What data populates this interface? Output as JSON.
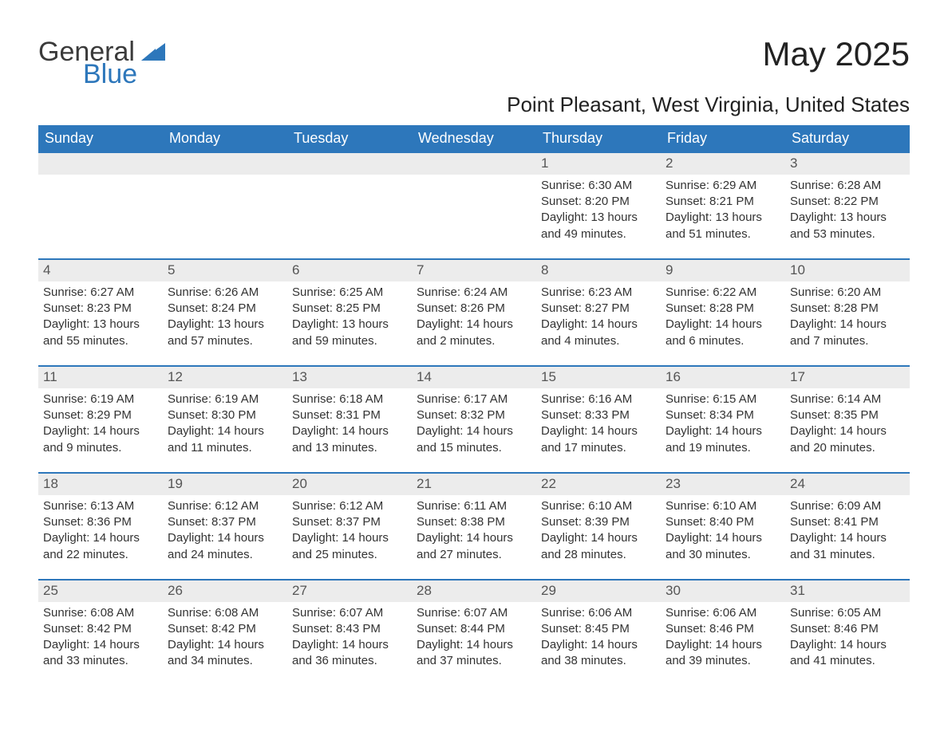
{
  "logo": {
    "word1": "General",
    "word2": "Blue",
    "brand_color": "#2D77BB",
    "text_color": "#3a3a3a"
  },
  "title": "May 2025",
  "location": "Point Pleasant, West Virginia, United States",
  "colors": {
    "header_bg": "#2D77BB",
    "header_text": "#ffffff",
    "daynum_bg": "#ECECEC",
    "body_text": "#333333",
    "row_border": "#2D77BB",
    "page_bg": "#ffffff"
  },
  "typography": {
    "title_fontsize": 42,
    "location_fontsize": 26,
    "header_fontsize": 18,
    "cell_fontsize": 15,
    "daynum_fontsize": 17,
    "logo_fontsize": 34
  },
  "weekdays": [
    "Sunday",
    "Monday",
    "Tuesday",
    "Wednesday",
    "Thursday",
    "Friday",
    "Saturday"
  ],
  "weeks": [
    [
      null,
      null,
      null,
      null,
      {
        "day": "1",
        "sunrise": "6:30 AM",
        "sunset": "8:20 PM",
        "daylight": "13 hours and 49 minutes."
      },
      {
        "day": "2",
        "sunrise": "6:29 AM",
        "sunset": "8:21 PM",
        "daylight": "13 hours and 51 minutes."
      },
      {
        "day": "3",
        "sunrise": "6:28 AM",
        "sunset": "8:22 PM",
        "daylight": "13 hours and 53 minutes."
      }
    ],
    [
      {
        "day": "4",
        "sunrise": "6:27 AM",
        "sunset": "8:23 PM",
        "daylight": "13 hours and 55 minutes."
      },
      {
        "day": "5",
        "sunrise": "6:26 AM",
        "sunset": "8:24 PM",
        "daylight": "13 hours and 57 minutes."
      },
      {
        "day": "6",
        "sunrise": "6:25 AM",
        "sunset": "8:25 PM",
        "daylight": "13 hours and 59 minutes."
      },
      {
        "day": "7",
        "sunrise": "6:24 AM",
        "sunset": "8:26 PM",
        "daylight": "14 hours and 2 minutes."
      },
      {
        "day": "8",
        "sunrise": "6:23 AM",
        "sunset": "8:27 PM",
        "daylight": "14 hours and 4 minutes."
      },
      {
        "day": "9",
        "sunrise": "6:22 AM",
        "sunset": "8:28 PM",
        "daylight": "14 hours and 6 minutes."
      },
      {
        "day": "10",
        "sunrise": "6:20 AM",
        "sunset": "8:28 PM",
        "daylight": "14 hours and 7 minutes."
      }
    ],
    [
      {
        "day": "11",
        "sunrise": "6:19 AM",
        "sunset": "8:29 PM",
        "daylight": "14 hours and 9 minutes."
      },
      {
        "day": "12",
        "sunrise": "6:19 AM",
        "sunset": "8:30 PM",
        "daylight": "14 hours and 11 minutes."
      },
      {
        "day": "13",
        "sunrise": "6:18 AM",
        "sunset": "8:31 PM",
        "daylight": "14 hours and 13 minutes."
      },
      {
        "day": "14",
        "sunrise": "6:17 AM",
        "sunset": "8:32 PM",
        "daylight": "14 hours and 15 minutes."
      },
      {
        "day": "15",
        "sunrise": "6:16 AM",
        "sunset": "8:33 PM",
        "daylight": "14 hours and 17 minutes."
      },
      {
        "day": "16",
        "sunrise": "6:15 AM",
        "sunset": "8:34 PM",
        "daylight": "14 hours and 19 minutes."
      },
      {
        "day": "17",
        "sunrise": "6:14 AM",
        "sunset": "8:35 PM",
        "daylight": "14 hours and 20 minutes."
      }
    ],
    [
      {
        "day": "18",
        "sunrise": "6:13 AM",
        "sunset": "8:36 PM",
        "daylight": "14 hours and 22 minutes."
      },
      {
        "day": "19",
        "sunrise": "6:12 AM",
        "sunset": "8:37 PM",
        "daylight": "14 hours and 24 minutes."
      },
      {
        "day": "20",
        "sunrise": "6:12 AM",
        "sunset": "8:37 PM",
        "daylight": "14 hours and 25 minutes."
      },
      {
        "day": "21",
        "sunrise": "6:11 AM",
        "sunset": "8:38 PM",
        "daylight": "14 hours and 27 minutes."
      },
      {
        "day": "22",
        "sunrise": "6:10 AM",
        "sunset": "8:39 PM",
        "daylight": "14 hours and 28 minutes."
      },
      {
        "day": "23",
        "sunrise": "6:10 AM",
        "sunset": "8:40 PM",
        "daylight": "14 hours and 30 minutes."
      },
      {
        "day": "24",
        "sunrise": "6:09 AM",
        "sunset": "8:41 PM",
        "daylight": "14 hours and 31 minutes."
      }
    ],
    [
      {
        "day": "25",
        "sunrise": "6:08 AM",
        "sunset": "8:42 PM",
        "daylight": "14 hours and 33 minutes."
      },
      {
        "day": "26",
        "sunrise": "6:08 AM",
        "sunset": "8:42 PM",
        "daylight": "14 hours and 34 minutes."
      },
      {
        "day": "27",
        "sunrise": "6:07 AM",
        "sunset": "8:43 PM",
        "daylight": "14 hours and 36 minutes."
      },
      {
        "day": "28",
        "sunrise": "6:07 AM",
        "sunset": "8:44 PM",
        "daylight": "14 hours and 37 minutes."
      },
      {
        "day": "29",
        "sunrise": "6:06 AM",
        "sunset": "8:45 PM",
        "daylight": "14 hours and 38 minutes."
      },
      {
        "day": "30",
        "sunrise": "6:06 AM",
        "sunset": "8:46 PM",
        "daylight": "14 hours and 39 minutes."
      },
      {
        "day": "31",
        "sunrise": "6:05 AM",
        "sunset": "8:46 PM",
        "daylight": "14 hours and 41 minutes."
      }
    ]
  ],
  "labels": {
    "sunrise_prefix": "Sunrise: ",
    "sunset_prefix": "Sunset: ",
    "daylight_prefix": "Daylight: "
  }
}
